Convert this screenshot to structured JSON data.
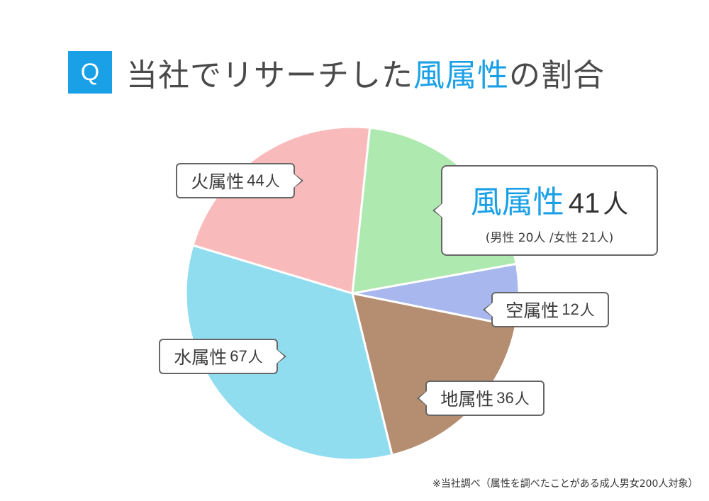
{
  "header": {
    "badge": "Q",
    "title_pre": "当社でリサーチした",
    "title_hl": "風属性",
    "title_post": "の割合"
  },
  "colors": {
    "accent": "#1aa0e6",
    "fire": "#f9babb",
    "wind": "#aeeaaf",
    "sky": "#a8b8ee",
    "earth": "#b58d70",
    "water": "#90ddf0"
  },
  "callouts": {
    "fire": {
      "label": "火属性",
      "num": "44",
      "unit": "人"
    },
    "water": {
      "label": "水属性",
      "num": "67",
      "unit": "人"
    },
    "earth": {
      "label": "地属性",
      "num": "36",
      "unit": "人"
    },
    "sky": {
      "label": "空属性",
      "num": "12",
      "unit": "人"
    },
    "wind": {
      "label": "風属性",
      "num": "41",
      "unit": "人",
      "sub": "(男性 20人 /女性 21人)"
    }
  },
  "chart_data": {
    "type": "pie",
    "categories": [
      "風属性",
      "空属性",
      "地属性",
      "水属性",
      "火属性"
    ],
    "values": [
      41,
      12,
      36,
      67,
      44
    ],
    "total": 200
  },
  "footnote": "※当社調べ（属性を調べたことがある成人男女200人対象）"
}
